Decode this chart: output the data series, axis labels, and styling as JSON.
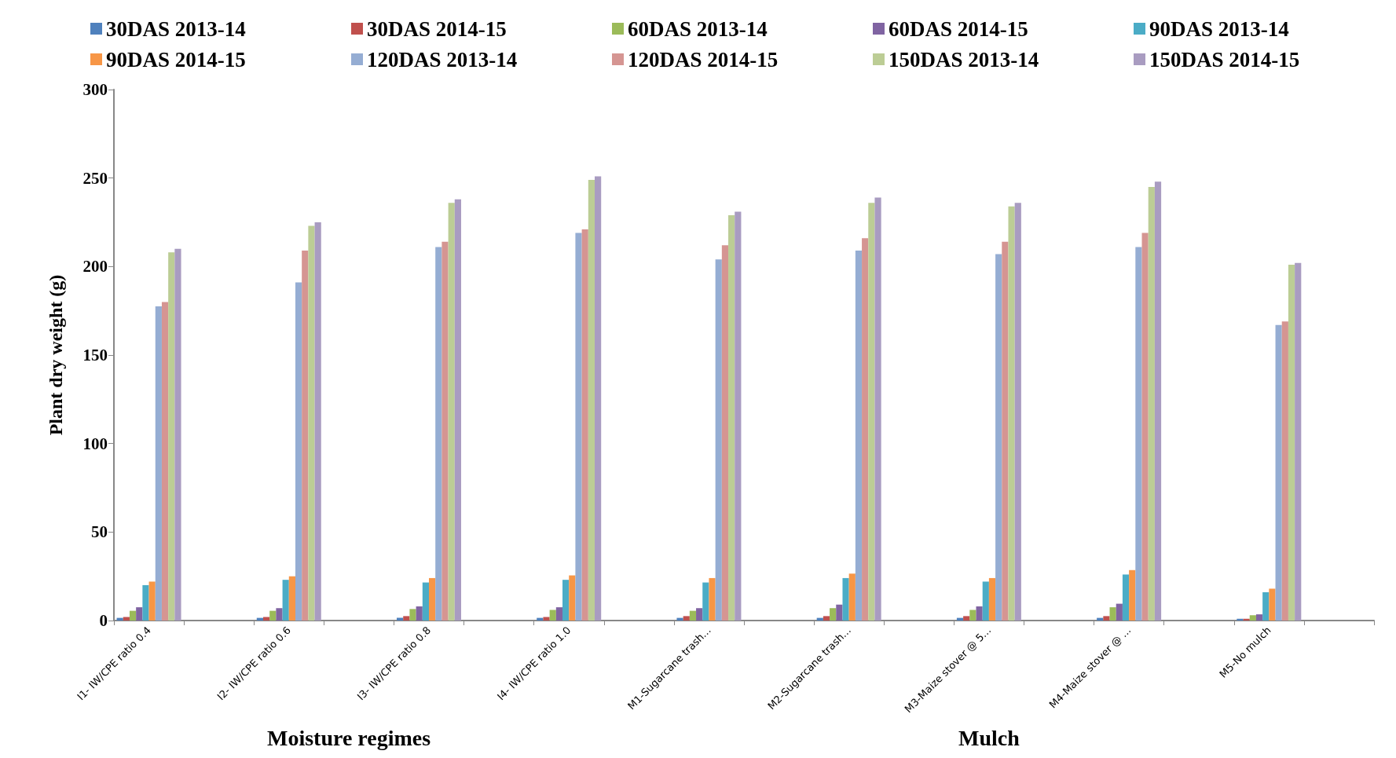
{
  "chart_data": {
    "type": "bar",
    "ylabel": "Plant dry weight (g)",
    "categories": [
      "I1- IW/CPE ratio 0.4",
      null,
      "I2- IW/CPE ratio 0.6",
      null,
      "I3- IW/CPE ratio 0.8",
      null,
      "I4- IW/CPE ratio 1.0",
      null,
      "M1-Sugarcane trash...",
      null,
      "M2-Sugarcane trash...",
      null,
      "M3-Maize stover @ 5...",
      null,
      "M4-Maize stover @ ...",
      null,
      "M5-No mulch",
      null
    ],
    "series": [
      {
        "name": "30DAS 2013-14",
        "color": "#4f81bd",
        "values": [
          1.5,
          null,
          1.5,
          null,
          1.5,
          null,
          1.5,
          null,
          1.5,
          null,
          1.5,
          null,
          1.5,
          null,
          1.5,
          null,
          1,
          null
        ]
      },
      {
        "name": "30DAS 2014-15",
        "color": "#c0504d",
        "values": [
          2,
          null,
          2,
          null,
          2.5,
          null,
          2,
          null,
          2.5,
          null,
          2.5,
          null,
          2.5,
          null,
          2.5,
          null,
          1,
          null
        ]
      },
      {
        "name": "60DAS 2013-14",
        "color": "#9bbb59",
        "values": [
          5.5,
          null,
          5.5,
          null,
          6.5,
          null,
          6,
          null,
          5.5,
          null,
          7,
          null,
          6,
          null,
          7.5,
          null,
          3,
          null
        ]
      },
      {
        "name": "60DAS 2014-15",
        "color": "#8064a2",
        "values": [
          7.5,
          null,
          7,
          null,
          8,
          null,
          7.5,
          null,
          7,
          null,
          9,
          null,
          8,
          null,
          9.5,
          null,
          3.5,
          null
        ]
      },
      {
        "name": "90DAS 2013-14",
        "color": "#4bacc6",
        "values": [
          20,
          null,
          23,
          null,
          21.5,
          null,
          23,
          null,
          21.5,
          null,
          24,
          null,
          22,
          null,
          26,
          null,
          16,
          null
        ]
      },
      {
        "name": "90DAS 2014-15",
        "color": "#f79646",
        "values": [
          22,
          null,
          25,
          null,
          24,
          null,
          25.5,
          null,
          24,
          null,
          26.5,
          null,
          24,
          null,
          28.5,
          null,
          18,
          null
        ]
      },
      {
        "name": "120DAS 2013-14",
        "color": "#95add3",
        "values": [
          177.5,
          null,
          191,
          null,
          211,
          null,
          219,
          null,
          204,
          null,
          209,
          null,
          207,
          null,
          211,
          null,
          167,
          null
        ]
      },
      {
        "name": "120DAS 2014-15",
        "color": "#d59592",
        "values": [
          180,
          null,
          209,
          null,
          214,
          null,
          221,
          null,
          212,
          null,
          216,
          null,
          214,
          null,
          219,
          null,
          169,
          null
        ]
      },
      {
        "name": "150DAS 2013-14",
        "color": "#bccd95",
        "values": [
          208,
          null,
          223,
          null,
          236,
          null,
          249,
          null,
          229,
          null,
          236,
          null,
          234,
          null,
          245,
          null,
          201,
          null
        ]
      },
      {
        "name": "150DAS 2014-15",
        "color": "#a99cc1",
        "values": [
          210,
          null,
          225,
          null,
          238,
          null,
          251,
          null,
          231,
          null,
          239,
          null,
          236,
          null,
          248,
          null,
          202,
          null
        ]
      }
    ],
    "ylim": [
      0,
      300
    ],
    "yticks": [
      0,
      50,
      100,
      150,
      200,
      250,
      300
    ],
    "grid": false,
    "legend": "top",
    "annotations": [
      "Moisture regimes",
      "Mulch"
    ]
  }
}
